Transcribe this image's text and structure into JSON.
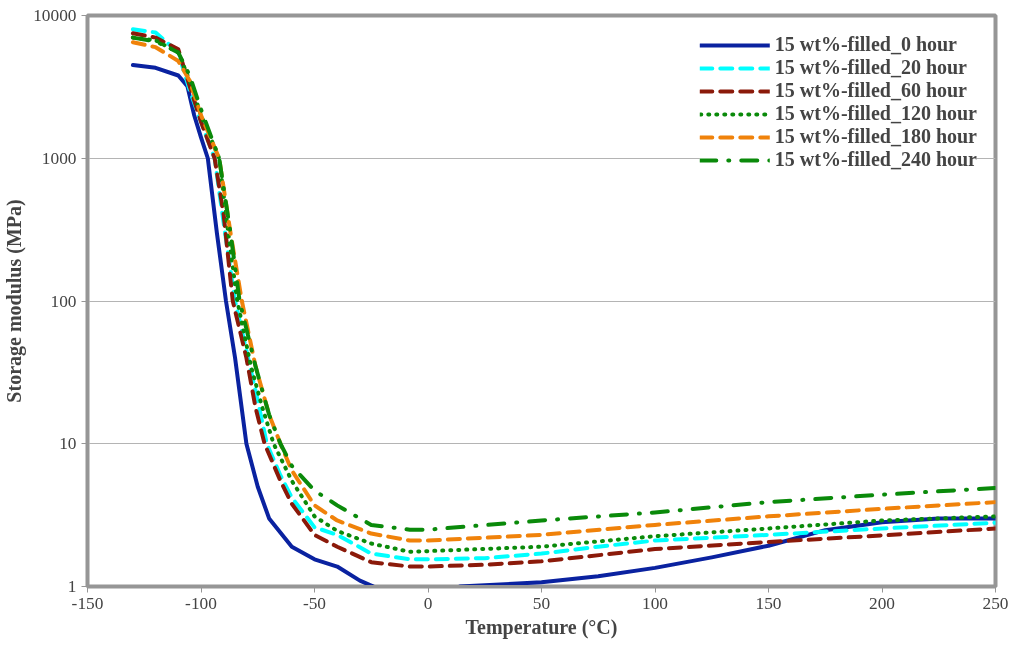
{
  "chart_data": {
    "type": "line",
    "xlabel": "Temperature (°C)",
    "ylabel": "Storage modulus (MPa)",
    "xlim": [
      -150,
      250
    ],
    "xticks": [
      -150,
      -100,
      -50,
      0,
      50,
      100,
      150,
      200,
      250
    ],
    "ylim": [
      1,
      10000
    ],
    "yticks": [
      1,
      10,
      100,
      1000,
      10000
    ],
    "log": "y",
    "grid": "y",
    "legend": "top right",
    "series": [
      {
        "name": "15 wt%-filled_0 hour",
        "color": "#0a22a0",
        "line_style": "solid",
        "x": [
          -130,
          -120,
          -110,
          -106,
          -103,
          -100,
          -97,
          -93,
          -89,
          -85,
          -80,
          -75,
          -70,
          -60,
          -50,
          -40,
          -30,
          -24,
          -10,
          0,
          14,
          25,
          50,
          75,
          100,
          125,
          150,
          175,
          200,
          225,
          250
        ],
        "values": [
          4500,
          4300,
          3800,
          3200,
          2000,
          1400,
          1000,
          300,
          100,
          40,
          10,
          5,
          3,
          1.9,
          1.55,
          1.38,
          1.1,
          1,
          null,
          null,
          1,
          1.02,
          1.07,
          1.18,
          1.35,
          1.6,
          1.93,
          2.48,
          2.82,
          3,
          3
        ]
      },
      {
        "name": "15 wt%-filled_20 hour",
        "color": "#00ffff",
        "line_style": "dashed",
        "x": [
          -130,
          -120,
          -110,
          -105,
          -100,
          -94,
          -90,
          -85,
          -80,
          -75,
          -71,
          -65,
          -60,
          -50,
          -40,
          -25,
          -8,
          0,
          25,
          50,
          75,
          100,
          150,
          200,
          250
        ],
        "values": [
          8000,
          7600,
          5500,
          3000,
          1800,
          1000,
          350,
          100,
          45,
          20,
          10,
          6,
          4.2,
          2.6,
          2.3,
          1.7,
          1.55,
          1.55,
          1.58,
          1.7,
          1.9,
          2.1,
          2.3,
          2.55,
          2.8
        ]
      },
      {
        "name": "15 wt%-filled_60 hour",
        "color": "#8b1a0a",
        "line_style": "dashed",
        "x": [
          -130,
          -120,
          -110,
          -105,
          -100,
          -94,
          -90,
          -86,
          -80,
          -76,
          -72,
          -65,
          -60,
          -50,
          -40,
          -25,
          -8,
          0,
          25,
          50,
          100,
          150,
          200,
          250
        ],
        "values": [
          7500,
          7000,
          5800,
          3200,
          1800,
          1000,
          400,
          100,
          40,
          18,
          10,
          5.5,
          3.8,
          2.3,
          1.9,
          1.48,
          1.38,
          1.38,
          1.42,
          1.5,
          1.83,
          2.05,
          2.28,
          2.55
        ]
      },
      {
        "name": "15 wt%-filled_120 hour",
        "color": "#0a8a0a",
        "line_style": "dotted",
        "x": [
          -130,
          -120,
          -110,
          -105,
          -100,
          -92,
          -88,
          -84,
          -78,
          -73,
          -68,
          -60,
          -50,
          -40,
          -25,
          -8,
          0,
          50,
          100,
          150,
          200,
          250
        ],
        "values": [
          7000,
          6700,
          5500,
          3500,
          2000,
          1000,
          300,
          100,
          35,
          18,
          10,
          5.5,
          3.1,
          2.45,
          2,
          1.75,
          1.77,
          1.9,
          2.25,
          2.55,
          2.9,
          3.1
        ]
      },
      {
        "name": "15 wt%-filled_180 hour",
        "color": "#f0820a",
        "line_style": "dashed",
        "x": [
          -130,
          -120,
          -110,
          -105,
          -100,
          -92,
          -87,
          -82,
          -76,
          -70,
          -65,
          -60,
          -50,
          -40,
          -25,
          -8,
          0,
          50,
          100,
          150,
          200,
          250
        ],
        "values": [
          6500,
          6000,
          4800,
          3500,
          2000,
          1000,
          300,
          100,
          35,
          16,
          10,
          6.5,
          3.7,
          2.9,
          2.35,
          2.1,
          2.1,
          2.3,
          2.7,
          3.1,
          3.5,
          3.9
        ]
      },
      {
        "name": "15 wt%-filled_240 hour",
        "color": "#0a8a0a",
        "line_style": "dashdot",
        "x": [
          -130,
          -120,
          -110,
          -105,
          -100,
          -92,
          -87,
          -83,
          -76,
          -70,
          -65,
          -60,
          -50,
          -40,
          -25,
          -8,
          0,
          50,
          100,
          150,
          200,
          250
        ],
        "values": [
          7000,
          6600,
          5500,
          3800,
          2200,
          1000,
          300,
          100,
          35,
          16,
          10,
          7,
          4.7,
          3.7,
          2.7,
          2.5,
          2.5,
          2.9,
          3.3,
          3.9,
          4.4,
          4.9
        ]
      }
    ]
  }
}
